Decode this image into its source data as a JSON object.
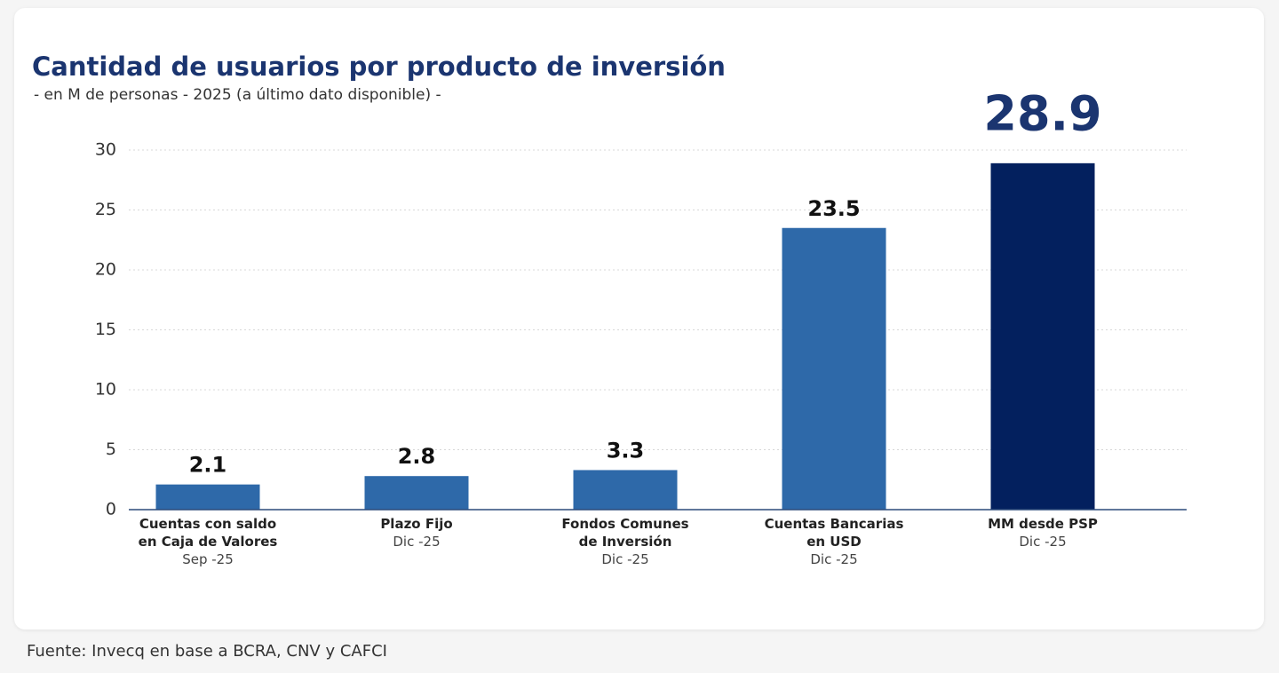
{
  "chart_data": {
    "type": "bar",
    "title": "Cantidad de usuarios por producto de inversión",
    "subtitle": "- en M de personas - 2025 (a último dato disponible) -",
    "categories": [
      "Cuentas con saldo en Caja de Valores",
      "Plazo Fijo",
      "Fondos Comunes de Inversión",
      "Cuentas Bancarias en USD",
      "MM desde PSP"
    ],
    "dates": [
      "Sep -25",
      "Dic -25",
      "Dic -25",
      "Dic -25",
      "Dic -25"
    ],
    "values": [
      2.1,
      2.8,
      3.3,
      23.5,
      28.9
    ],
    "colors": [
      "#2e69a9",
      "#2e69a9",
      "#2e69a9",
      "#2e69a9",
      "#03205e"
    ],
    "ylim": [
      0,
      30
    ],
    "yticks": [
      0,
      5,
      10,
      15,
      20,
      25,
      30
    ],
    "grid": true,
    "source": "Fuente: Invecq en base a BCRA, CNV y CAFCI"
  }
}
